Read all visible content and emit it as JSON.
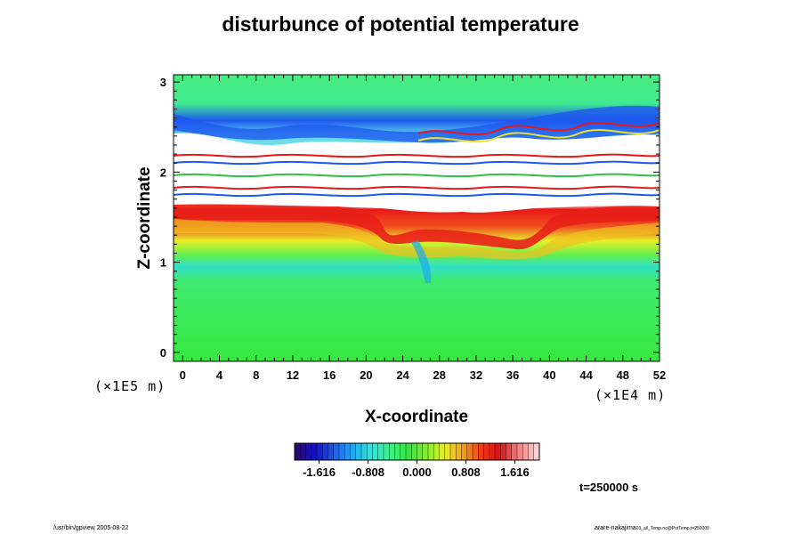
{
  "chart_data": {
    "type": "heatmap",
    "title": "disturbunce of potential temperature",
    "xlabel": "X-coordinate",
    "ylabel": "Z-coordinate",
    "x_unit": "(×1E4 m)",
    "y_unit": "(×1E5 m)",
    "xlim": [
      -1,
      52
    ],
    "ylim": [
      -0.1,
      3.08
    ],
    "x_ticks": [
      0,
      4,
      8,
      12,
      16,
      20,
      24,
      28,
      32,
      36,
      40,
      44,
      48,
      52
    ],
    "y_ticks": [
      0,
      1,
      2,
      3
    ],
    "colorbar": {
      "ticks": [
        "-1.616",
        "-0.808",
        "0.000",
        "0.808",
        "1.616"
      ],
      "range": [
        -2.02,
        2.02
      ],
      "colors": [
        "#2a0a6e",
        "#1010c8",
        "#1e5cf0",
        "#1ea8f0",
        "#28e8e0",
        "#3ef08a",
        "#30e840",
        "#80f028",
        "#e8f028",
        "#f0a020",
        "#f03818",
        "#d81010",
        "#f08080",
        "#fbd0d0"
      ]
    },
    "field_bands": [
      {
        "z": 2.55,
        "value": -1.6
      },
      {
        "z": 2.3,
        "value": -0.4
      },
      {
        "z": 1.6,
        "value": 1.8
      },
      {
        "z": 1.45,
        "value": 1.2
      },
      {
        "z": 1.25,
        "value": 0.55
      },
      {
        "z": 1.05,
        "value": -0.25
      },
      {
        "z": 0.5,
        "value": 0.15
      },
      {
        "z": 0.0,
        "value": 0.2
      }
    ],
    "annotation": "t=250000 s"
  },
  "footer": {
    "left": "/usr/bin/gpview 2005-08-22",
    "right_main": "arare-nakajima",
    "right_sub": "03_all_Temp.nc@PotTemp,t=250000"
  }
}
